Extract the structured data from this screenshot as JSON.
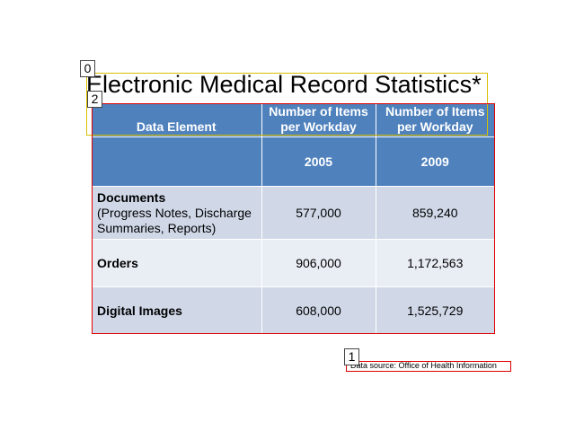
{
  "slide": {
    "title": "Electronic Medical Record Statistics*",
    "source": "Data source:  Office of Health Information"
  },
  "table": {
    "headers": {
      "element": "Data Element",
      "col1": "Number of Items per Workday",
      "col2": "Number of Items per Workday"
    },
    "years": [
      "2005",
      "2009"
    ],
    "rows": [
      {
        "name": "Documents",
        "detail": "(Progress Notes, Discharge Summaries, Reports)",
        "v2005": "577,000",
        "v2009": "859,240"
      },
      {
        "name": "Orders",
        "detail": "",
        "v2005": "906,000",
        "v2009": "1,172,563"
      },
      {
        "name": "Digital Images",
        "detail": "",
        "v2005": "608,000",
        "v2009": "1,525,729"
      }
    ]
  },
  "annotations": {
    "labels": [
      "0",
      "1",
      "2"
    ]
  },
  "colors": {
    "header_bg": "#4f81bd",
    "row_dark": "#d0d8e8",
    "row_light": "#e9edf4",
    "anno_yellow": "#d8c000",
    "anno_red": "#e00000"
  }
}
